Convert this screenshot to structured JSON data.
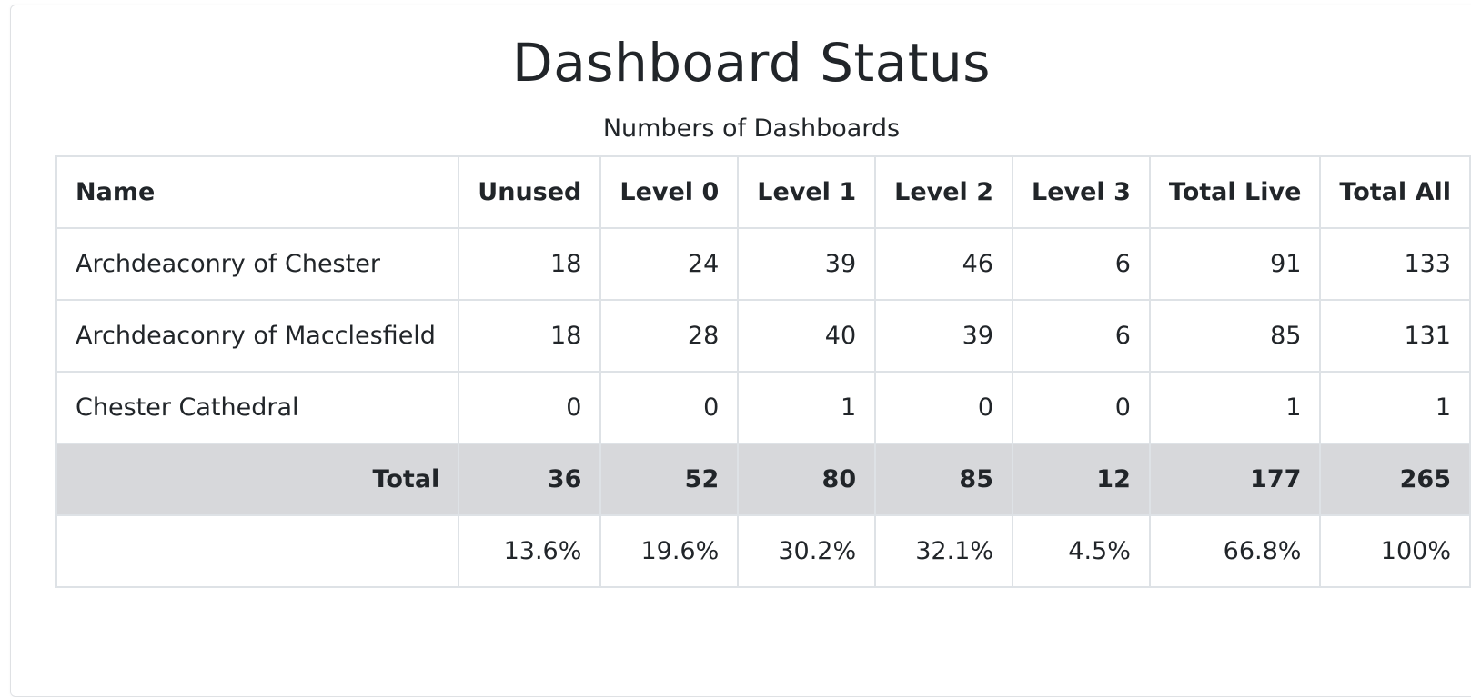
{
  "page": {
    "title": "Dashboard Status",
    "subtitle": "Numbers of Dashboards"
  },
  "table": {
    "headers": [
      "Name",
      "Unused",
      "Level 0",
      "Level 1",
      "Level 2",
      "Level 3",
      "Total Live",
      "Total All"
    ],
    "rows": [
      {
        "name": "Archdeaconry of Chester",
        "values": [
          "18",
          "24",
          "39",
          "46",
          "6",
          "91",
          "133"
        ]
      },
      {
        "name": "Archdeaconry of Macclesfield",
        "values": [
          "18",
          "28",
          "40",
          "39",
          "6",
          "85",
          "131"
        ]
      },
      {
        "name": "Chester Cathedral",
        "values": [
          "0",
          "0",
          "1",
          "0",
          "0",
          "1",
          "1"
        ]
      }
    ],
    "total": {
      "label": "Total",
      "values": [
        "36",
        "52",
        "80",
        "85",
        "12",
        "177",
        "265"
      ]
    },
    "percent": {
      "label": "",
      "values": [
        "13.6%",
        "19.6%",
        "30.2%",
        "32.1%",
        "4.5%",
        "66.8%",
        "100%"
      ]
    }
  },
  "colors": {
    "total_row_bg": "#d7d8db",
    "border": "#dee2e6",
    "text": "#212529"
  }
}
